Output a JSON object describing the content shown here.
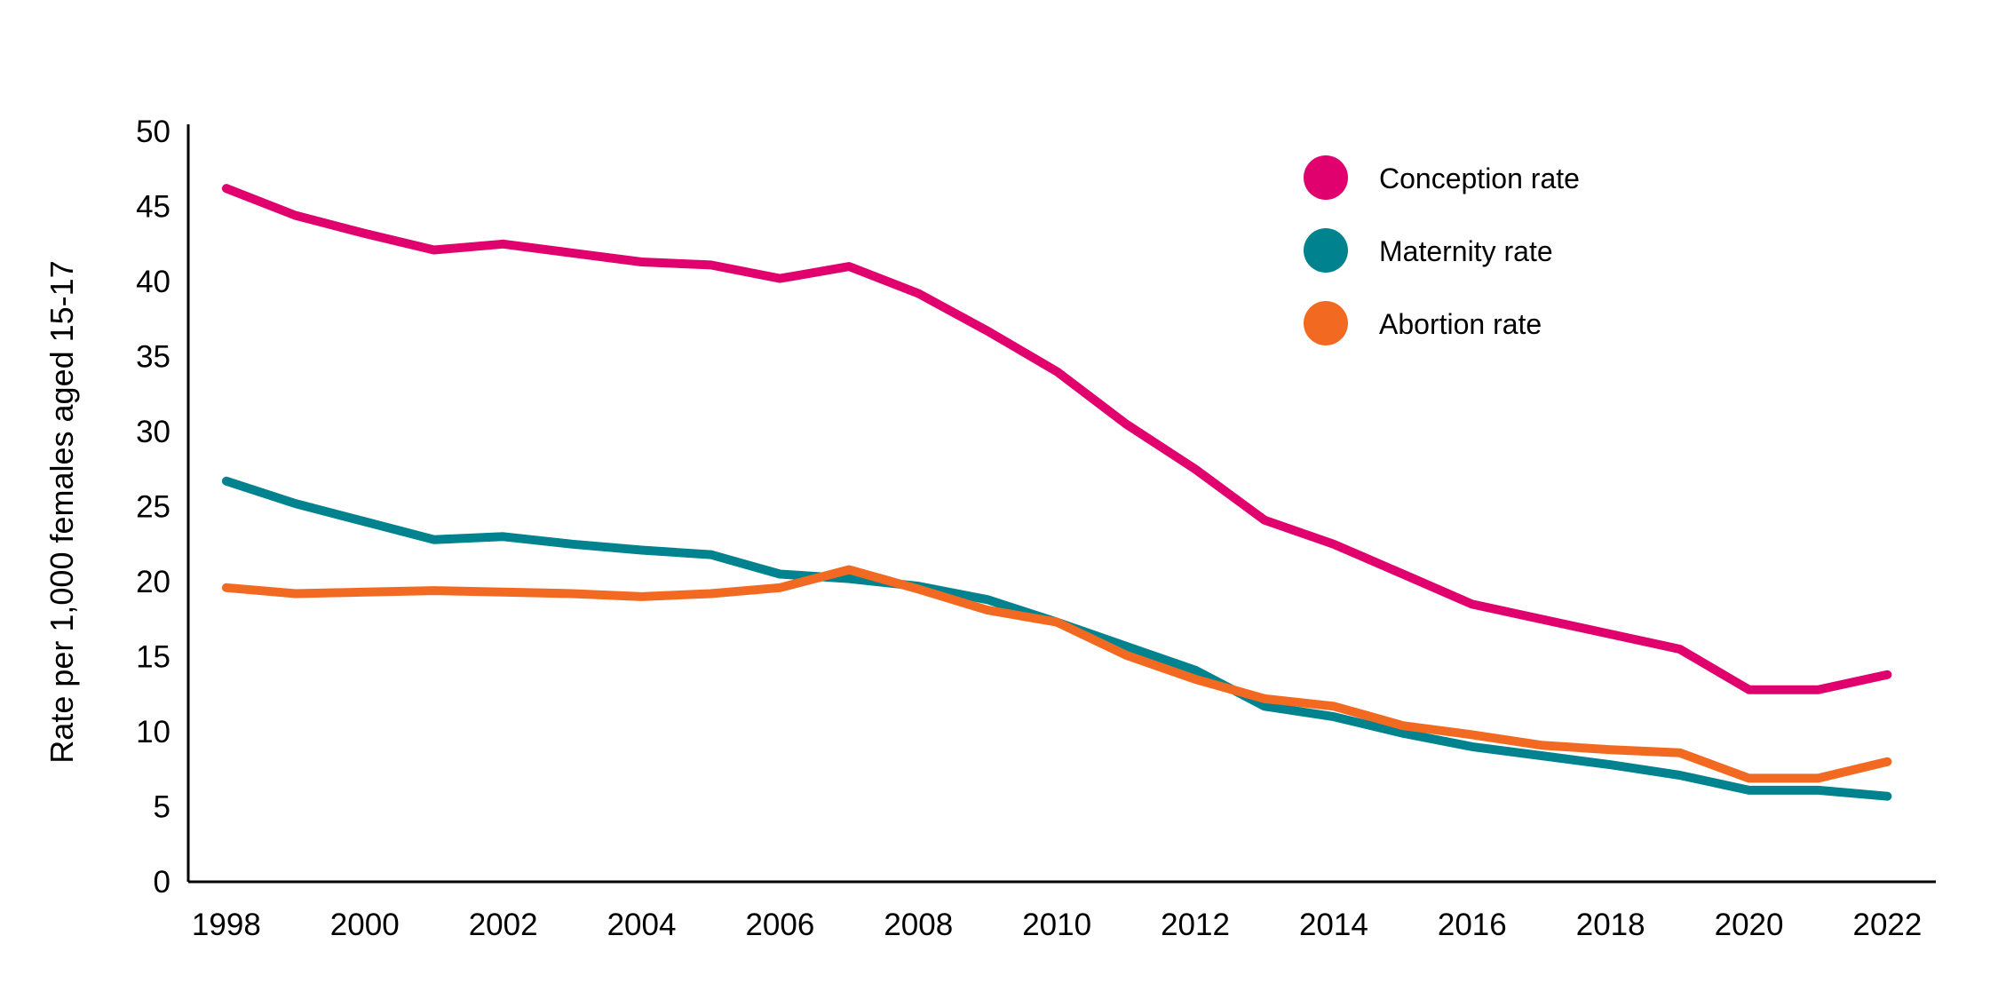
{
  "chart_data": {
    "type": "line",
    "title": "",
    "xlabel": "",
    "ylabel": "Rate per 1,000 females aged 15-17",
    "xlim": [
      1998,
      2022
    ],
    "ylim": [
      0,
      50
    ],
    "y_ticks": [
      0,
      5,
      10,
      15,
      20,
      25,
      30,
      35,
      40,
      45,
      50
    ],
    "x_ticks": [
      1998,
      2000,
      2002,
      2004,
      2006,
      2008,
      2010,
      2012,
      2014,
      2016,
      2018,
      2020,
      2022
    ],
    "grid": false,
    "legend_position": "top-right",
    "x": [
      1998,
      1999,
      2000,
      2001,
      2002,
      2003,
      2004,
      2005,
      2006,
      2007,
      2008,
      2009,
      2010,
      2011,
      2012,
      2013,
      2014,
      2015,
      2016,
      2017,
      2018,
      2019,
      2020,
      2021,
      2022
    ],
    "series": [
      {
        "name": "Conception rate",
        "color": "#E0006E",
        "values": [
          46.2,
          44.4,
          43.2,
          42.1,
          42.5,
          41.9,
          41.3,
          41.1,
          40.2,
          41.0,
          39.2,
          36.7,
          34.0,
          30.5,
          27.5,
          24.1,
          22.5,
          20.5,
          18.5,
          17.5,
          16.5,
          15.5,
          12.8,
          12.8,
          13.8
        ]
      },
      {
        "name": "Maternity rate",
        "color": "#00838F",
        "values": [
          26.7,
          25.2,
          24.0,
          22.8,
          23.0,
          22.5,
          22.1,
          21.8,
          20.5,
          20.2,
          19.7,
          18.8,
          17.3,
          15.7,
          14.1,
          11.7,
          11.0,
          9.9,
          9.0,
          8.4,
          7.8,
          7.1,
          6.1,
          6.1,
          5.7
        ]
      },
      {
        "name": "Abortion rate",
        "color": "#F26A21",
        "values": [
          19.6,
          19.2,
          19.3,
          19.4,
          19.3,
          19.2,
          19.0,
          19.2,
          19.6,
          20.8,
          19.5,
          18.1,
          17.3,
          15.1,
          13.5,
          12.2,
          11.7,
          10.4,
          9.8,
          9.1,
          8.8,
          8.6,
          6.9,
          6.9,
          8.0
        ]
      }
    ]
  }
}
